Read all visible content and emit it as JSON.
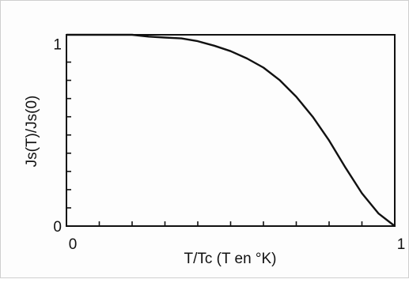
{
  "chart_data": {
    "type": "line",
    "xlabel": "T/Tc (T en °K)",
    "ylabel": "Js(T)/Js(0)",
    "xlim": [
      0,
      1
    ],
    "ylim": [
      0,
      1.05
    ],
    "x_tick_labels": [
      {
        "value": 0,
        "label": "0"
      },
      {
        "value": 1,
        "label": "1"
      }
    ],
    "y_tick_labels": [
      {
        "value": 0,
        "label": "0"
      },
      {
        "value": 1,
        "label": "1"
      }
    ],
    "x_minor_ticks": [
      0.1,
      0.2,
      0.3,
      0.4,
      0.5,
      0.6,
      0.7,
      0.8,
      0.9
    ],
    "y_minor_ticks": [
      0.1,
      0.2,
      0.3,
      0.4,
      0.5,
      0.6,
      0.7,
      0.8,
      0.9
    ],
    "grid": false,
    "series": [
      {
        "x": [
          0.0,
          0.1,
          0.2,
          0.25,
          0.3,
          0.35,
          0.4,
          0.45,
          0.5,
          0.55,
          0.6,
          0.65,
          0.7,
          0.75,
          0.8,
          0.85,
          0.9,
          0.95,
          1.0
        ],
        "y": [
          1.05,
          1.05,
          1.05,
          1.04,
          1.035,
          1.03,
          1.015,
          0.99,
          0.96,
          0.92,
          0.87,
          0.8,
          0.71,
          0.6,
          0.47,
          0.32,
          0.18,
          0.07,
          0.0
        ]
      }
    ]
  }
}
